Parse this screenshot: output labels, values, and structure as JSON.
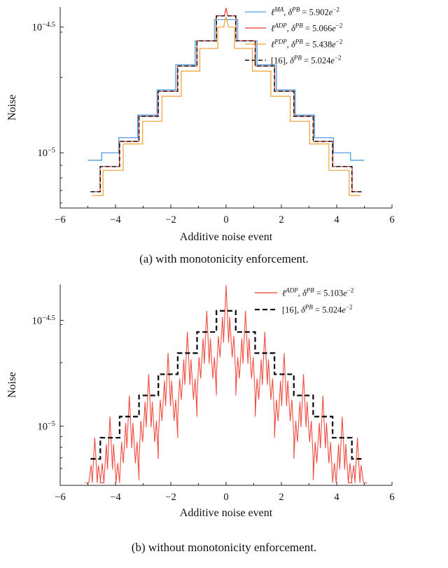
{
  "captions": {
    "a": "(a) with monotonicity enforcement.",
    "b": "(b) without monotonicity enforcement."
  },
  "chart_data": [
    {
      "id": "plot-a",
      "type": "line",
      "title": "",
      "xlabel": "Additive noise event",
      "ylabel": "Noise",
      "xscale": "linear",
      "yscale": "log10",
      "xlim": [
        -6,
        6
      ],
      "ylim_log10": [
        -5.22,
        -4.42
      ],
      "grid": false,
      "legend_position": "top-right",
      "x_ticks": [
        {
          "v": -6,
          "t": "−6"
        },
        {
          "v": -4,
          "t": "−4"
        },
        {
          "v": -2,
          "t": "−2"
        },
        {
          "v": 0,
          "t": "0"
        },
        {
          "v": 2,
          "t": "2"
        },
        {
          "v": 4,
          "t": "4"
        },
        {
          "v": 6,
          "t": "6"
        }
      ],
      "x_minor_ticks": [
        -5,
        -3,
        -1,
        1,
        3,
        5
      ],
      "y_ticks": [
        {
          "v": -4.5,
          "segs": [
            {
              "t": "10"
            },
            {
              "t": "−4.5",
              "sup": true
            }
          ]
        },
        {
          "v": -5.0,
          "segs": [
            {
              "t": "10"
            },
            {
              "t": "−5",
              "sup": true
            }
          ]
        }
      ],
      "y_minor_ticks": [
        -4.52,
        -4.7,
        -5.05,
        -5.1,
        -5.15,
        -5.2
      ],
      "series": [
        {
          "name": "l-MA",
          "color": "#4D9DE0",
          "width": 1.3,
          "dash": null,
          "legend_segs": [
            {
              "t": "ℓ",
              "i": true
            },
            {
              "t": "MA",
              "sup": true,
              "i": true
            },
            {
              "t": ", "
            },
            {
              "t": "δ",
              "i": true
            },
            {
              "t": "PB",
              "sup": true,
              "i": true
            },
            {
              "t": " = 5.902"
            },
            {
              "t": "e",
              "i": true
            },
            {
              "t": "−2",
              "sup": true
            }
          ],
          "stair": {
            "levels": [
              -4.47,
              -4.555,
              -4.65,
              -4.75,
              -4.85,
              -4.94,
              -5.0,
              -5.03
            ],
            "edges": [
              0.42,
              1.12,
              1.82,
              2.5,
              3.2,
              3.88,
              4.5
            ],
            "xend": 5.0
          }
        },
        {
          "name": "l-ADP",
          "color": "#E8392C",
          "width": 1.2,
          "dash": null,
          "legend_segs": [
            {
              "t": "ℓ",
              "i": true
            },
            {
              "t": "ADP",
              "sup": true,
              "i": true
            },
            {
              "t": ", "
            },
            {
              "t": "δ",
              "i": true
            },
            {
              "t": "PB",
              "sup": true,
              "i": true
            },
            {
              "t": " = 5.066"
            },
            {
              "t": "e",
              "i": true
            },
            {
              "t": "−2",
              "sup": true
            }
          ],
          "stair": {
            "levels": [
              -4.455,
              -4.555,
              -4.655,
              -4.755,
              -4.855,
              -4.955,
              -5.055,
              -5.155
            ],
            "edges": [
              0.36,
              1.06,
              1.76,
              2.46,
              3.16,
              3.86,
              4.56
            ],
            "xend": 4.88
          },
          "center_spike": {
            "half_width": 0.06,
            "peak": -4.42
          }
        },
        {
          "name": "l-PDP",
          "color": "#F0A030",
          "width": 1.2,
          "dash": null,
          "legend_segs": [
            {
              "t": "ℓ",
              "i": true
            },
            {
              "t": "PDP",
              "sup": true,
              "i": true
            },
            {
              "t": ", "
            },
            {
              "t": "δ",
              "i": true
            },
            {
              "t": "PB",
              "sup": true,
              "i": true
            },
            {
              "t": " = 5.438"
            },
            {
              "t": "e",
              "i": true
            },
            {
              "t": "−2",
              "sup": true
            }
          ],
          "stair": {
            "levels": [
              -4.5,
              -4.585,
              -4.675,
              -4.775,
              -4.875,
              -4.965,
              -5.07,
              -5.17
            ],
            "edges": [
              0.3,
              0.95,
              1.62,
              2.32,
              3.02,
              3.72,
              4.45
            ],
            "xend": 4.85
          },
          "center_spike": {
            "half_width": 0.09,
            "peak": -4.46
          }
        },
        {
          "name": "ref-16",
          "color": "#111111",
          "width": 1.5,
          "dash": "6,3.5",
          "legend_segs": [
            {
              "t": "[16], "
            },
            {
              "t": "δ",
              "i": true
            },
            {
              "t": "PB",
              "sup": true,
              "i": true
            },
            {
              "t": " = 5.024"
            },
            {
              "t": "e",
              "i": true
            },
            {
              "t": "−2",
              "sup": true
            }
          ],
          "stair": {
            "levels": [
              -4.455,
              -4.555,
              -4.655,
              -4.755,
              -4.855,
              -4.955,
              -5.055,
              -5.155
            ],
            "edges": [
              0.35,
              1.05,
              1.75,
              2.45,
              3.15,
              3.85,
              4.55
            ],
            "xend": 4.9
          }
        }
      ]
    },
    {
      "id": "plot-b",
      "type": "line",
      "title": "",
      "xlabel": "Additive noise event",
      "ylabel": "Noise",
      "xscale": "linear",
      "yscale": "log10",
      "xlim": [
        -6,
        6
      ],
      "ylim_log10": [
        -5.28,
        -4.33
      ],
      "grid": false,
      "legend_position": "top-right",
      "x_ticks": [
        {
          "v": -6,
          "t": "−6"
        },
        {
          "v": -4,
          "t": "−4"
        },
        {
          "v": -2,
          "t": "−2"
        },
        {
          "v": 0,
          "t": "0"
        },
        {
          "v": 2,
          "t": "2"
        },
        {
          "v": 4,
          "t": "4"
        },
        {
          "v": 6,
          "t": "6"
        }
      ],
      "x_minor_ticks": [
        -5,
        -3,
        -1,
        1,
        3,
        5
      ],
      "y_ticks": [
        {
          "v": -4.5,
          "segs": [
            {
              "t": "10"
            },
            {
              "t": "−4.5",
              "sup": true
            }
          ]
        },
        {
          "v": -5.0,
          "segs": [
            {
              "t": "10"
            },
            {
              "t": "−5",
              "sup": true
            }
          ]
        }
      ],
      "y_minor_ticks": [
        -4.52,
        -4.7,
        -5.05,
        -5.1,
        -5.15,
        -5.2
      ],
      "series": [
        {
          "name": "l-ADP",
          "color": "#ED3A2D",
          "width": 1.1,
          "opacity": 0.9,
          "dash": null,
          "legend_segs": [
            {
              "t": "ℓ",
              "i": true
            },
            {
              "t": "ADP",
              "sup": true,
              "i": true
            },
            {
              "t": ", "
            },
            {
              "t": "δ",
              "i": true
            },
            {
              "t": "PB",
              "sup": true,
              "i": true
            },
            {
              "t": " = 5.103"
            },
            {
              "t": "e",
              "i": true
            },
            {
              "t": "−2",
              "sup": true
            }
          ],
          "teeth": {
            "centers": [
              -4.75,
              -4.2,
              -3.5,
              -2.8,
              -2.1,
              -1.4,
              -0.7,
              0,
              0.7,
              1.4,
              2.1,
              2.8,
              3.5,
              4.2,
              4.75
            ],
            "levels": [
              -4.455,
              -4.555,
              -4.655,
              -4.755,
              -4.855,
              -4.955,
              -5.055,
              -5.155
            ],
            "pitch": 0.7,
            "peak_amp": 0.1,
            "center_peak_amp": 0.155,
            "shape": [
              [
                -0.35,
                -0.3
              ],
              [
                -0.28,
                -0.12
              ],
              [
                -0.22,
                -0.22
              ],
              [
                -0.13,
                -0.03
              ],
              [
                -0.09,
                -0.15
              ],
              [
                0,
                0
              ],
              [
                0.09,
                -0.15
              ],
              [
                0.13,
                -0.03
              ],
              [
                0.22,
                -0.22
              ],
              [
                0.28,
                -0.12
              ],
              [
                0.35,
                -0.3
              ]
            ]
          }
        },
        {
          "name": "ref-16",
          "color": "#111111",
          "width": 2.3,
          "dash": "7,4",
          "legend_segs": [
            {
              "t": "[16], "
            },
            {
              "t": "δ",
              "i": true
            },
            {
              "t": "PB",
              "sup": true,
              "i": true
            },
            {
              "t": " = 5.024"
            },
            {
              "t": "e",
              "i": true
            },
            {
              "t": "−2",
              "sup": true
            }
          ],
          "stair": {
            "levels": [
              -4.455,
              -4.555,
              -4.655,
              -4.755,
              -4.855,
              -4.955,
              -5.055,
              -5.155
            ],
            "edges": [
              0.35,
              1.05,
              1.75,
              2.45,
              3.15,
              3.85,
              4.55
            ],
            "xend": 4.9
          }
        }
      ]
    }
  ]
}
